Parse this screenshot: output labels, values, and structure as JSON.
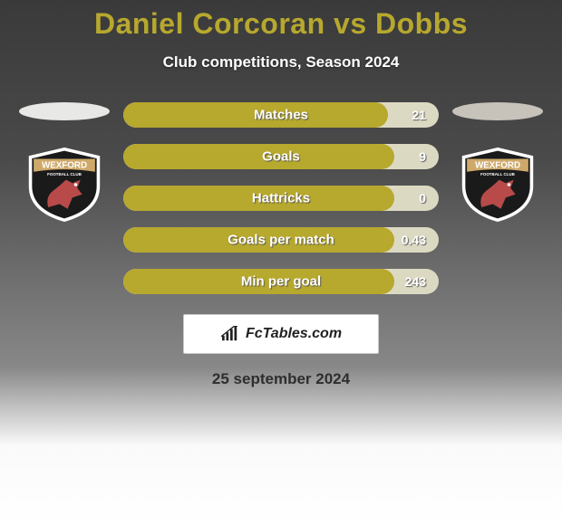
{
  "title": "Daniel Corcoran vs Dobbs",
  "subtitle": "Club competitions, Season 2024",
  "date": "25 september 2024",
  "logo_text": "FcTables.com",
  "colors": {
    "title": "#b7a82e",
    "bar_fill": "#b7a82e",
    "bar_track": "#dcd9c3",
    "left_ellipse": "#e8e8e6",
    "right_ellipse": "#c7c3bb",
    "badge_main": "#1a1a1a",
    "badge_border": "#ffffff",
    "badge_band": "#cfa96a",
    "badge_text": "#ffffff",
    "badge_horse": "#b84a4a"
  },
  "team_left": {
    "name": "WEXFORD",
    "sub": "FOOTBALL CLUB"
  },
  "team_right": {
    "name": "WEXFORD",
    "sub": "FOOTBALL CLUB"
  },
  "stats": [
    {
      "label": "Matches",
      "right_value": "21",
      "fill_pct": 84
    },
    {
      "label": "Goals",
      "right_value": "9",
      "fill_pct": 86
    },
    {
      "label": "Hattricks",
      "right_value": "0",
      "fill_pct": 86
    },
    {
      "label": "Goals per match",
      "right_value": "0.43",
      "fill_pct": 86
    },
    {
      "label": "Min per goal",
      "right_value": "243",
      "fill_pct": 86
    }
  ]
}
